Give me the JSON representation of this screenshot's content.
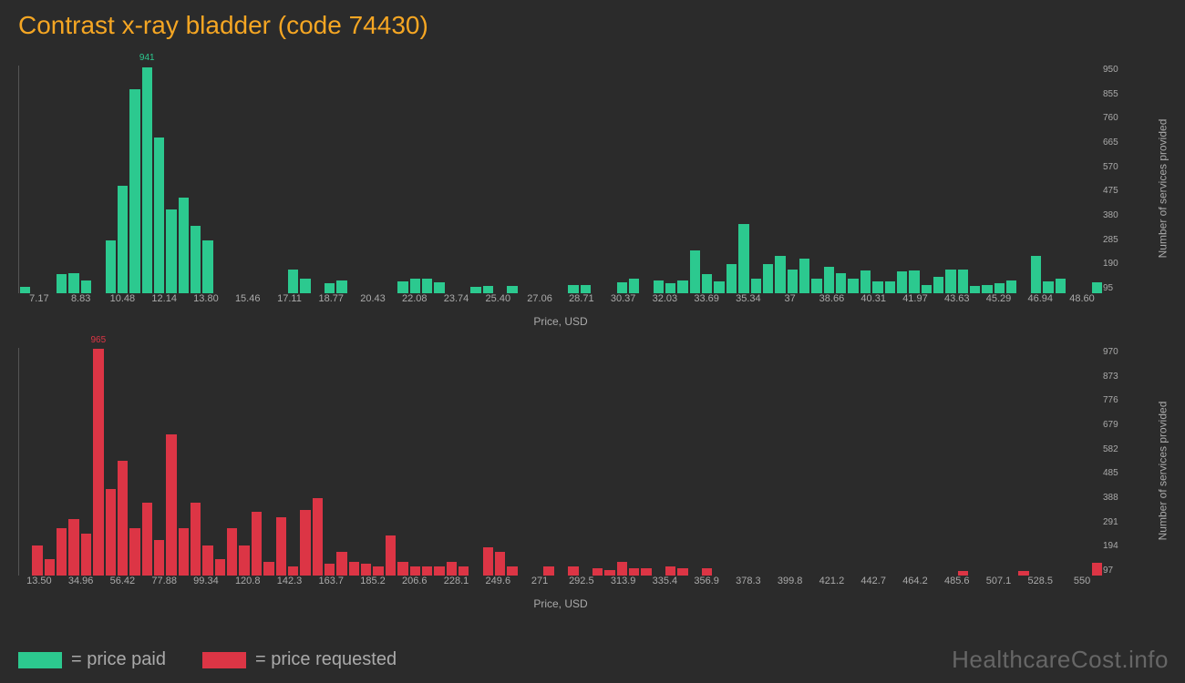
{
  "title": "Contrast x-ray bladder (code 74430)",
  "watermark": "HealthcareCost.info",
  "colors": {
    "bg": "#2b2b2b",
    "title": "#f5a623",
    "series_paid": "#2cc98f",
    "series_requested": "#dc3545",
    "axis_text": "#aaaaaa"
  },
  "legend": {
    "paid": "= price paid",
    "requested": "= price requested"
  },
  "chart_paid": {
    "type": "histogram",
    "color": "#2cc98f",
    "x_label": "Price, USD",
    "y_label": "Number of services provided",
    "x_ticks": [
      "7.17",
      "8.83",
      "10.48",
      "12.14",
      "13.80",
      "15.46",
      "17.11",
      "18.77",
      "20.43",
      "22.08",
      "23.74",
      "25.40",
      "27.06",
      "28.71",
      "30.37",
      "32.03",
      "33.69",
      "35.34",
      "37",
      "38.66",
      "40.31",
      "41.97",
      "43.63",
      "45.29",
      "46.94",
      "48.60"
    ],
    "y_ticks": [
      "95",
      "190",
      "285",
      "380",
      "475",
      "570",
      "665",
      "760",
      "855",
      "950"
    ],
    "y_max": 950,
    "peak_label": "941",
    "peak_index": 10,
    "values": [
      25,
      0,
      0,
      80,
      85,
      55,
      0,
      220,
      450,
      850,
      941,
      650,
      350,
      400,
      280,
      220,
      0,
      0,
      0,
      0,
      0,
      0,
      100,
      60,
      0,
      40,
      55,
      0,
      0,
      0,
      0,
      50,
      60,
      60,
      45,
      0,
      0,
      25,
      30,
      0,
      30,
      0,
      0,
      0,
      0,
      35,
      35,
      0,
      0,
      45,
      60,
      0,
      55,
      40,
      55,
      180,
      80,
      50,
      120,
      290,
      60,
      120,
      155,
      100,
      145,
      60,
      110,
      85,
      60,
      95,
      50,
      50,
      90,
      95,
      35,
      70,
      100,
      98,
      30,
      35,
      40,
      55,
      0,
      155,
      50,
      60,
      0,
      0,
      45
    ]
  },
  "chart_requested": {
    "type": "histogram",
    "color": "#dc3545",
    "x_label": "Price, USD",
    "y_label": "Number of services provided",
    "x_ticks": [
      "13.50",
      "34.96",
      "56.42",
      "77.88",
      "99.34",
      "120.8",
      "142.3",
      "163.7",
      "185.2",
      "206.6",
      "228.1",
      "249.6",
      "271",
      "292.5",
      "313.9",
      "335.4",
      "356.9",
      "378.3",
      "399.8",
      "421.2",
      "442.7",
      "464.2",
      "485.6",
      "507.1",
      "528.5",
      "550"
    ],
    "y_ticks": [
      "97",
      "194",
      "291",
      "388",
      "485",
      "582",
      "679",
      "776",
      "873",
      "970"
    ],
    "y_max": 970,
    "peak_label": "965",
    "peak_index": 6,
    "values": [
      0,
      130,
      70,
      200,
      240,
      180,
      965,
      370,
      490,
      200,
      310,
      150,
      600,
      200,
      310,
      130,
      70,
      200,
      130,
      270,
      60,
      250,
      40,
      280,
      330,
      50,
      100,
      60,
      50,
      40,
      170,
      60,
      40,
      40,
      40,
      60,
      40,
      0,
      120,
      100,
      40,
      0,
      0,
      40,
      0,
      40,
      0,
      30,
      25,
      60,
      30,
      30,
      0,
      40,
      30,
      0,
      30,
      0,
      0,
      0,
      0,
      0,
      0,
      0,
      0,
      0,
      0,
      0,
      0,
      0,
      0,
      0,
      0,
      0,
      0,
      0,
      0,
      20,
      0,
      0,
      0,
      0,
      20,
      0,
      0,
      0,
      0,
      0,
      55
    ]
  }
}
